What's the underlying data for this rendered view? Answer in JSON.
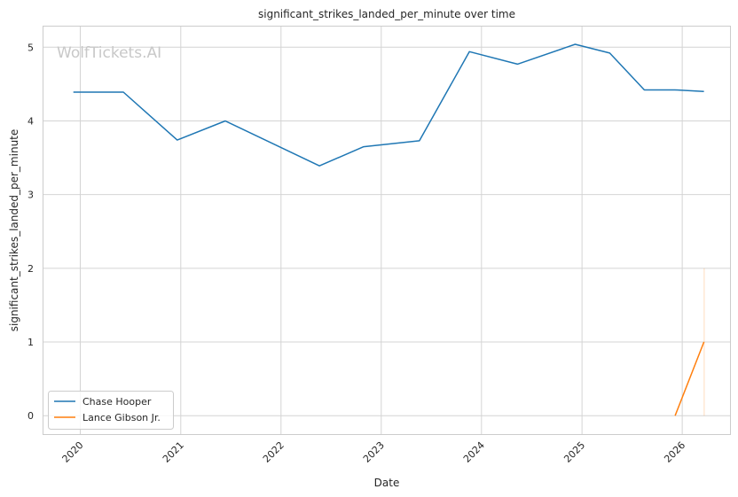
{
  "chart_data": {
    "type": "line",
    "title": "significant_strikes_landed_per_minute over time",
    "xlabel": "Date",
    "ylabel": "significant_strikes_landed_per_minute",
    "watermark": "WolfTickets.AI",
    "xlim": [
      "2019-08-20",
      "2026-06-24"
    ],
    "ylim": [
      -0.25,
      5.28
    ],
    "x_ticks": [
      "2020",
      "2021",
      "2022",
      "2023",
      "2024",
      "2025",
      "2026"
    ],
    "y_ticks": [
      "0",
      "1",
      "2",
      "3",
      "4",
      "5"
    ],
    "grid": true,
    "legend_position": "lower-left",
    "series": [
      {
        "name": "Chase Hooper",
        "color": "#1f77b4",
        "points": [
          {
            "x": "2019-12-07",
            "y": 4.39
          },
          {
            "x": "2020-06-06",
            "y": 4.39
          },
          {
            "x": "2020-12-19",
            "y": 3.74
          },
          {
            "x": "2021-06-12",
            "y": 4.0
          },
          {
            "x": "2022-05-21",
            "y": 3.39
          },
          {
            "x": "2022-10-29",
            "y": 3.65
          },
          {
            "x": "2023-05-20",
            "y": 3.73
          },
          {
            "x": "2023-11-18",
            "y": 4.94
          },
          {
            "x": "2024-05-11",
            "y": 4.77
          },
          {
            "x": "2024-12-07",
            "y": 5.04
          },
          {
            "x": "2025-04-12",
            "y": 4.92
          },
          {
            "x": "2025-08-16",
            "y": 4.42
          },
          {
            "x": "2025-12-06",
            "y": 4.42
          },
          {
            "x": "2026-03-21",
            "y": 4.4
          }
        ]
      },
      {
        "name": "Lance Gibson Jr.",
        "color": "#ff7f0e",
        "points": [
          {
            "x": "2025-12-06",
            "y": 0.0
          },
          {
            "x": "2026-03-21",
            "y": 1.0
          }
        ],
        "band": {
          "x": "2026-03-21",
          "low": 0.0,
          "high": 2.0
        }
      }
    ]
  }
}
